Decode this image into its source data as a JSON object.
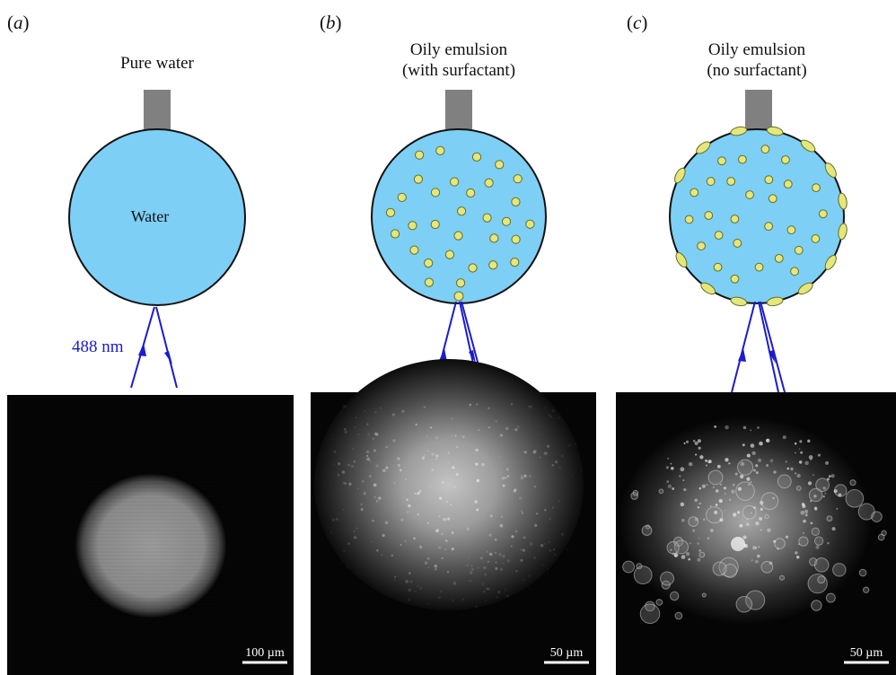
{
  "colors": {
    "water": "#7DCFF5",
    "outline": "#111111",
    "nozzle": "#808080",
    "droplet_fill": "#E4E87A",
    "droplet_stroke": "#6A6A2A",
    "laser": "#1B1BD0",
    "photo_background": "#050505",
    "scalebar": "#ffffff"
  },
  "panels": [
    {
      "label_open": "(",
      "label_letter": "a",
      "label_close": ")",
      "title_line1": "Pure water",
      "title_line2": "",
      "drop_label": "Water",
      "laser_label": "488 nm",
      "drop_style": "pure water",
      "image_scalebar": "100 µm",
      "image_description_icon": "fluorescence-micrograph-icon"
    },
    {
      "label_open": "(",
      "label_letter": "b",
      "label_close": ")",
      "title_line1": "Oily emulsion",
      "title_line2": "(with surfactant)",
      "drop_label": "",
      "laser_label": "",
      "drop_style": "dispersed droplets",
      "image_scalebar": "50 µm",
      "image_description_icon": "fluorescence-micrograph-icon"
    },
    {
      "label_open": "(",
      "label_letter": "c",
      "label_close": ")",
      "title_line1": "Oily emulsion",
      "title_line2": "(no surfactant)",
      "drop_label": "",
      "laser_label": "",
      "drop_style": "droplets adsorbed at interface",
      "image_scalebar": "50 µm",
      "image_description_icon": "fluorescence-micrograph-icon"
    }
  ]
}
